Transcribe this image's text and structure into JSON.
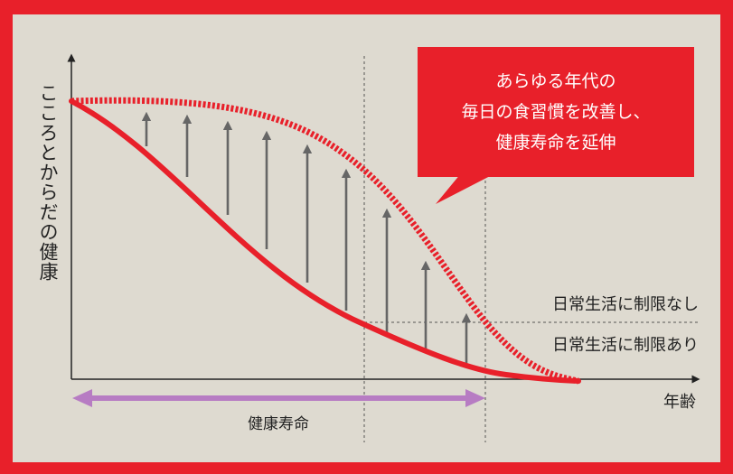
{
  "diagram": {
    "y_axis_label": "こころとからだの健康",
    "x_axis_label": "年齢",
    "threshold_above_label": "日常生活に制限なし",
    "threshold_below_label": "日常生活に制限あり",
    "span_label": "健康寿命",
    "callout": {
      "lines": [
        "あらゆる年代の",
        "毎日の食習慣を改善し、",
        "健康寿命を延伸"
      ]
    },
    "colors": {
      "background": "#dedad0",
      "frame": "#e8202a",
      "curve": "#e8202a",
      "arrow": "#666666",
      "span_bar": "#b77cc3"
    }
  }
}
